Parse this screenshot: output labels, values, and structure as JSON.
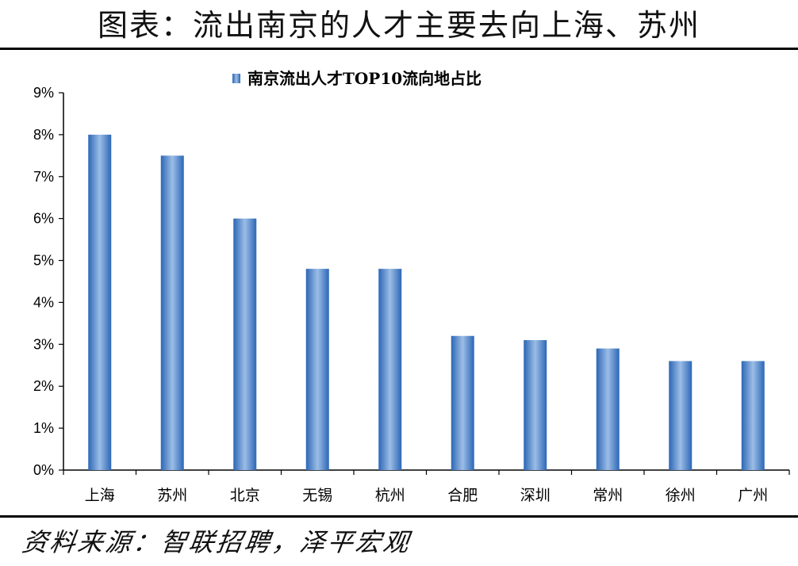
{
  "header": {
    "title": "图表：流出南京的人才主要去向上海、苏州"
  },
  "footer": {
    "source": "资料来源：智联招聘，泽平宏观"
  },
  "colors": {
    "bar_dark": "#2c67b6",
    "bar_light": "#9cbde6",
    "axis": "#000000"
  },
  "chart_data": {
    "type": "bar",
    "categories": [
      "上海",
      "苏州",
      "北京",
      "无锡",
      "杭州",
      "合肥",
      "深圳",
      "常州",
      "徐州",
      "广州"
    ],
    "series": [
      {
        "name": "南京流出人才TOP10流向地占比",
        "values": [
          8.0,
          7.5,
          6.0,
          4.8,
          4.8,
          3.2,
          3.1,
          2.9,
          2.6,
          2.6
        ]
      }
    ],
    "yticks": [
      "0%",
      "1%",
      "2%",
      "3%",
      "4%",
      "5%",
      "6%",
      "7%",
      "8%",
      "9%"
    ],
    "ylim": [
      0,
      9
    ],
    "legend_position": "top-center",
    "grid": false
  }
}
